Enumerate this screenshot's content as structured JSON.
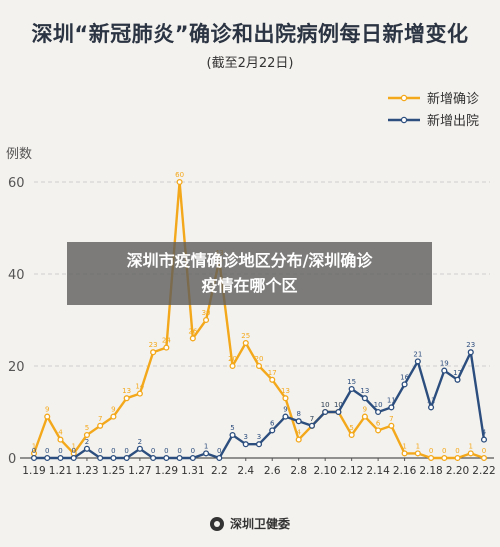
{
  "header": {
    "title": "深圳“新冠肺炎”确诊和出院病例每日新增变化",
    "subtitle": "(截至2月22日)"
  },
  "overlay": {
    "line1": "深圳市疫情确诊地区分布/深圳确诊",
    "line2": "疫情在哪个区"
  },
  "footer": {
    "source": "深圳卫健委",
    "logo_icon": "health-commission-logo-icon"
  },
  "colors": {
    "confirmed": "#f3a81b",
    "discharged": "#2c4e7e",
    "grid": "#cfcfcf",
    "axis_text": "#333333"
  },
  "chart_data": {
    "type": "line",
    "ylabel": "例数",
    "ylim": [
      0,
      60
    ],
    "yticks": [
      0,
      20,
      40,
      60
    ],
    "x": [
      "1.19",
      "1.20",
      "1.21",
      "1.22",
      "1.23",
      "1.24",
      "1.25",
      "1.26",
      "1.27",
      "1.28",
      "1.29",
      "1.30",
      "1.31",
      "2.1",
      "2.2",
      "2.3",
      "2.4",
      "2.5",
      "2.6",
      "2.7",
      "2.8",
      "2.9",
      "2.10",
      "2.11",
      "2.12",
      "2.13",
      "2.14",
      "2.15",
      "2.16",
      "2.17",
      "2.18",
      "2.19",
      "2.20",
      "2.21",
      "2.22"
    ],
    "xtick_labels": [
      "1.19",
      "1.21",
      "1.23",
      "1.25",
      "1.27",
      "1.29",
      "1.31",
      "2.2",
      "2.4",
      "2.6",
      "2.8",
      "2.10",
      "2.12",
      "2.14",
      "2.16",
      "2.18",
      "2.20",
      "2.22"
    ],
    "legend_position": "top-right",
    "grid": true,
    "series": [
      {
        "name": "新增确诊",
        "values": [
          1,
          9,
          4,
          1,
          5,
          7,
          9,
          13,
          14,
          23,
          24,
          60,
          26,
          30,
          43,
          20,
          25,
          20,
          17,
          13,
          4,
          7,
          10,
          10,
          5,
          9,
          6,
          7,
          1,
          1,
          0,
          0,
          0,
          1,
          0
        ]
      },
      {
        "name": "新增出院",
        "values": [
          0,
          0,
          0,
          0,
          2,
          0,
          0,
          0,
          2,
          0,
          0,
          0,
          0,
          1,
          0,
          5,
          3,
          3,
          6,
          9,
          8,
          7,
          10,
          10,
          15,
          13,
          10,
          11,
          16,
          21,
          11,
          19,
          17,
          23,
          4
        ]
      }
    ]
  }
}
